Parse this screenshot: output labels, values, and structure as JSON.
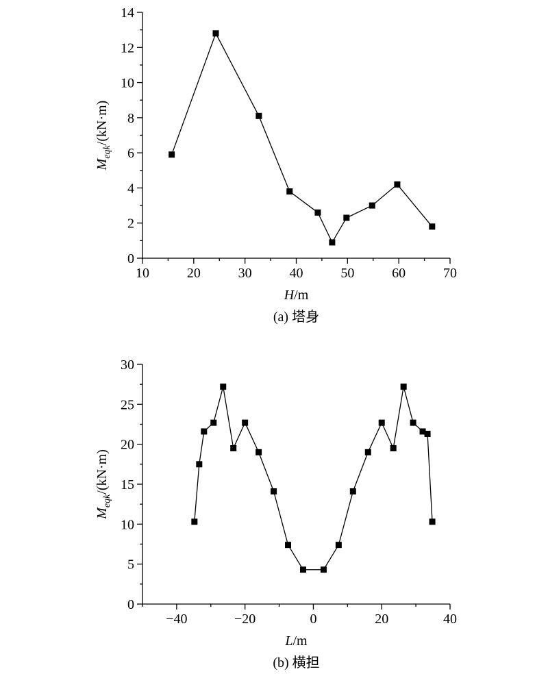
{
  "chart_data": [
    {
      "type": "line",
      "color": "#000000",
      "x": [
        15.7,
        24.3,
        32.7,
        38.7,
        44.2,
        47.0,
        49.8,
        54.8,
        59.7,
        66.5
      ],
      "values": [
        5.9,
        12.8,
        8.1,
        3.8,
        2.6,
        0.9,
        2.3,
        3.0,
        4.2,
        1.8
      ],
      "xlim": [
        10,
        70
      ],
      "xticks": [
        10,
        20,
        30,
        40,
        50,
        60,
        70
      ],
      "ylim": [
        0,
        14
      ],
      "yticks": [
        0,
        2,
        4,
        6,
        8,
        10,
        12,
        14
      ],
      "xlabel_symbol": "H",
      "xlabel_unit": "/m",
      "ylabel_symbol": "M",
      "ylabel_sub": "eqk",
      "ylabel_unit": "/(kN·m)",
      "caption": "(a) 塔身"
    },
    {
      "type": "line",
      "color": "#000000",
      "x": [
        -34.8,
        -33.4,
        -32,
        -29.2,
        -26.4,
        -23.4,
        -20,
        -16,
        -11.6,
        -7.4,
        -3,
        3,
        7.4,
        11.6,
        16,
        20,
        23.4,
        26.4,
        29.2,
        32,
        33.4,
        34.8
      ],
      "values": [
        10.3,
        17.5,
        21.6,
        22.7,
        27.2,
        19.5,
        22.7,
        19.0,
        14.1,
        7.4,
        4.3,
        4.3,
        7.4,
        14.1,
        19.0,
        22.7,
        19.5,
        27.2,
        22.7,
        21.6,
        21.3,
        10.3
      ],
      "xlim": [
        -50,
        40
      ],
      "xticks": [
        {
          "value": -40,
          "label": "−40"
        },
        {
          "value": -20,
          "label": "−20"
        },
        0,
        20,
        40
      ],
      "ylim": [
        0,
        30
      ],
      "yticks": [
        0,
        5,
        10,
        15,
        20,
        25,
        30
      ],
      "xlabel_symbol": "L",
      "xlabel_unit": "/m",
      "ylabel_symbol": "M",
      "ylabel_sub": "eqk",
      "ylabel_unit": "/(kN·m)",
      "caption": "(b) 横担"
    }
  ]
}
